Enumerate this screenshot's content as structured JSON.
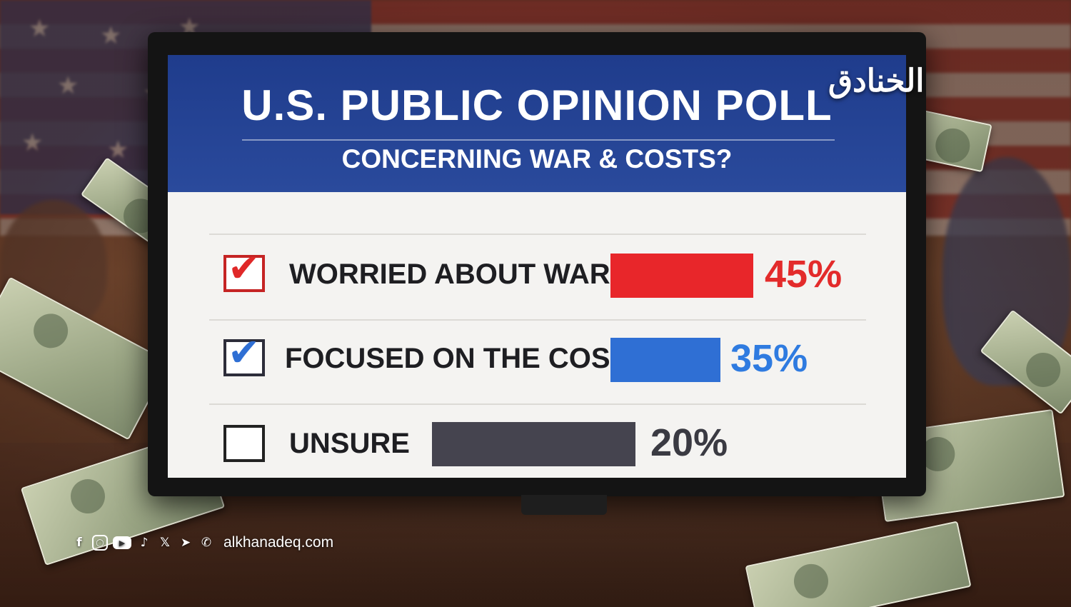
{
  "logo_text": "الخنادق",
  "poll": {
    "title": "U.S. PUBLIC OPINION POLL",
    "subtitle": "CONCERNING WAR & COSTS?"
  },
  "chart_data": {
    "type": "bar",
    "title": "U.S. PUBLIC OPINION POLL",
    "subtitle": "CONCERNING WAR & COSTS?",
    "categories": [
      "WORRIED ABOUT WAR",
      "FOCUSED ON THE COSTS",
      "UNSURE"
    ],
    "values": [
      45,
      35,
      20
    ],
    "value_labels": [
      "45%",
      "35%",
      "20%"
    ],
    "checked": [
      true,
      true,
      false
    ],
    "colors": [
      "#e8262a",
      "#2f6fd4",
      "#45444f"
    ],
    "label_colors": [
      "#e32b2b",
      "#2f7be0",
      "#3a3a42"
    ],
    "unit": "%"
  },
  "footer": {
    "icons": [
      "facebook-icon",
      "instagram-icon",
      "youtube-icon",
      "tiktok-icon",
      "x-icon",
      "telegram-icon",
      "whatsapp-icon"
    ],
    "website": "alkhanadeq.com"
  }
}
